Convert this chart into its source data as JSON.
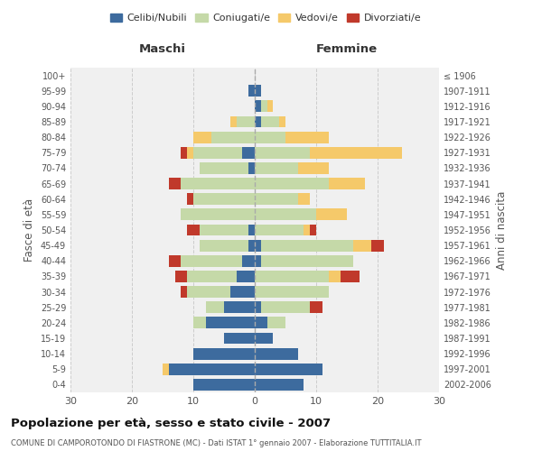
{
  "age_groups": [
    "0-4",
    "5-9",
    "10-14",
    "15-19",
    "20-24",
    "25-29",
    "30-34",
    "35-39",
    "40-44",
    "45-49",
    "50-54",
    "55-59",
    "60-64",
    "65-69",
    "70-74",
    "75-79",
    "80-84",
    "85-89",
    "90-94",
    "95-99",
    "100+"
  ],
  "birth_years": [
    "2002-2006",
    "1997-2001",
    "1992-1996",
    "1987-1991",
    "1982-1986",
    "1977-1981",
    "1972-1976",
    "1967-1971",
    "1962-1966",
    "1957-1961",
    "1952-1956",
    "1947-1951",
    "1942-1946",
    "1937-1941",
    "1932-1936",
    "1927-1931",
    "1922-1926",
    "1917-1921",
    "1912-1916",
    "1907-1911",
    "≤ 1906"
  ],
  "colors": {
    "celibe": "#3d6b9e",
    "coniugato": "#c5d9a8",
    "vedovo": "#f5c96a",
    "divorziato": "#c0392b"
  },
  "maschi": {
    "celibe": [
      10,
      14,
      10,
      5,
      8,
      5,
      4,
      3,
      2,
      1,
      1,
      0,
      0,
      0,
      1,
      2,
      0,
      0,
      0,
      1,
      0
    ],
    "coniugato": [
      0,
      0,
      0,
      0,
      2,
      3,
      7,
      8,
      10,
      8,
      8,
      12,
      10,
      12,
      8,
      8,
      7,
      3,
      0,
      0,
      0
    ],
    "vedovo": [
      0,
      1,
      0,
      0,
      0,
      0,
      0,
      0,
      0,
      0,
      0,
      0,
      0,
      0,
      0,
      1,
      3,
      1,
      0,
      0,
      0
    ],
    "divorziato": [
      0,
      0,
      0,
      0,
      0,
      0,
      1,
      2,
      2,
      0,
      2,
      0,
      1,
      2,
      0,
      1,
      0,
      0,
      0,
      0,
      0
    ]
  },
  "femmine": {
    "nubile": [
      8,
      11,
      7,
      3,
      2,
      1,
      0,
      0,
      1,
      1,
      0,
      0,
      0,
      0,
      0,
      0,
      0,
      1,
      1,
      1,
      0
    ],
    "coniugata": [
      0,
      0,
      0,
      0,
      3,
      8,
      12,
      12,
      15,
      15,
      8,
      10,
      7,
      12,
      7,
      9,
      5,
      3,
      1,
      0,
      0
    ],
    "vedova": [
      0,
      0,
      0,
      0,
      0,
      0,
      0,
      2,
      0,
      3,
      1,
      5,
      2,
      6,
      5,
      15,
      7,
      1,
      1,
      0,
      0
    ],
    "divorziata": [
      0,
      0,
      0,
      0,
      0,
      2,
      0,
      3,
      0,
      2,
      1,
      0,
      0,
      0,
      0,
      0,
      0,
      0,
      0,
      0,
      0
    ]
  },
  "xlim": 30,
  "title": "Popolazione per età, sesso e stato civile - 2007",
  "subtitle": "COMUNE DI CAMPOROTONDO DI FIASTRONE (MC) - Dati ISTAT 1° gennaio 2007 - Elaborazione TUTTITALIA.IT",
  "ylabel_left": "Fasce di età",
  "ylabel_right": "Anni di nascita",
  "legend_labels": [
    "Celibi/Nubili",
    "Coniugati/e",
    "Vedovi/e",
    "Divorziati/e"
  ],
  "maschi_label": "Maschi",
  "femmine_label": "Femmine",
  "bg_color": "#ffffff",
  "plot_bg": "#f0f0f0"
}
